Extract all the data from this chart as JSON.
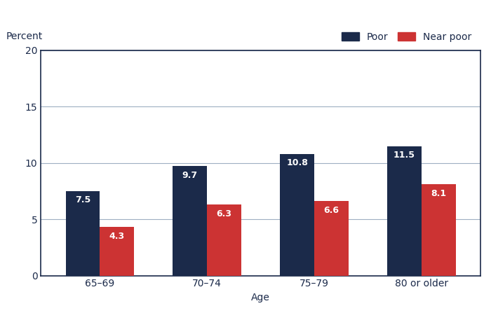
{
  "categories": [
    "65–69",
    "70–74",
    "75–79",
    "80 or older"
  ],
  "poor_values": [
    7.5,
    9.7,
    10.8,
    11.5
  ],
  "near_poor_values": [
    4.3,
    6.3,
    6.6,
    8.1
  ],
  "poor_color": "#1b2a4a",
  "near_poor_color": "#cc3333",
  "bar_width": 0.32,
  "ylim": [
    0,
    20
  ],
  "yticks": [
    0,
    5,
    10,
    15,
    20
  ],
  "xlabel": "Age",
  "ylabel": "Percent",
  "legend_poor": "Poor",
  "legend_near_poor": "Near poor",
  "background_color": "#ffffff",
  "plot_bg_color": "#ffffff",
  "grid_color": "#9eafc2",
  "border_color": "#1b2a4a",
  "label_fontsize": 10,
  "axis_label_fontsize": 10,
  "value_fontsize": 9,
  "tick_label_color": "#1b2a4a",
  "ylabel_fontsize": 10
}
